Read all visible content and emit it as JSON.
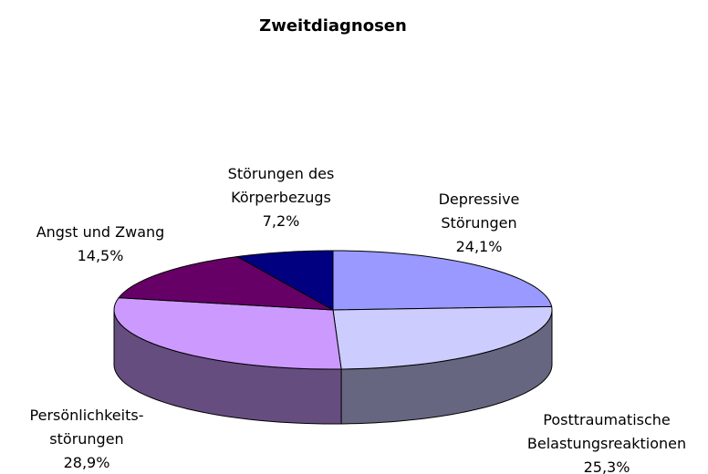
{
  "chart_data": {
    "type": "pie3d",
    "title": "Zweitdiagnosen",
    "categories": [
      "Depressive\nStörungen",
      "Posttraumatische\nBelastungsreaktionen",
      "Persönlichkeits-\nstörungen",
      "Angst und Zwang",
      "Störungen des\nKörperbezugs"
    ],
    "values": [
      24.1,
      25.3,
      28.9,
      14.5,
      7.2
    ],
    "value_labels": [
      "24,1%",
      "25,3%",
      "28,9%",
      "14,5%",
      "7,2%"
    ],
    "colors": [
      "#9999ff",
      "#ccccff",
      "#cc99ff",
      "#660066",
      "#000080"
    ]
  }
}
